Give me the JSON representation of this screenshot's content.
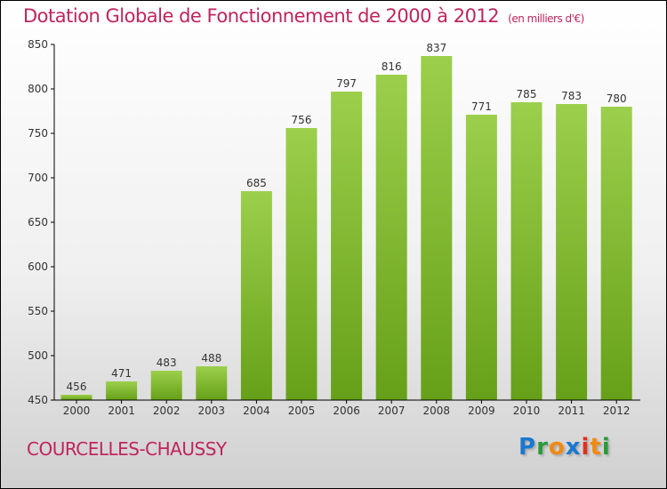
{
  "chart_data": {
    "type": "bar",
    "title": "Dotation Globale de Fonctionnement de 2000 à 2012",
    "unit_label": "(en milliers d'€)",
    "categories": [
      "2000",
      "2001",
      "2002",
      "2003",
      "2004",
      "2005",
      "2006",
      "2007",
      "2008",
      "2009",
      "2010",
      "2011",
      "2012"
    ],
    "values": [
      456,
      471,
      483,
      488,
      685,
      756,
      797,
      816,
      837,
      771,
      785,
      783,
      780
    ],
    "ylim": [
      450,
      850
    ],
    "yticks": [
      450,
      500,
      550,
      600,
      650,
      700,
      750,
      800,
      850
    ],
    "xlabel": "",
    "ylabel": "",
    "bar_color_top": "#9ccf4c",
    "bar_color_bottom": "#66a018",
    "grid": false
  },
  "footer": {
    "commune": "COURCELLES-CHAUSSY",
    "logo": "Proxiti"
  },
  "colors": {
    "title": "#c0245c"
  }
}
